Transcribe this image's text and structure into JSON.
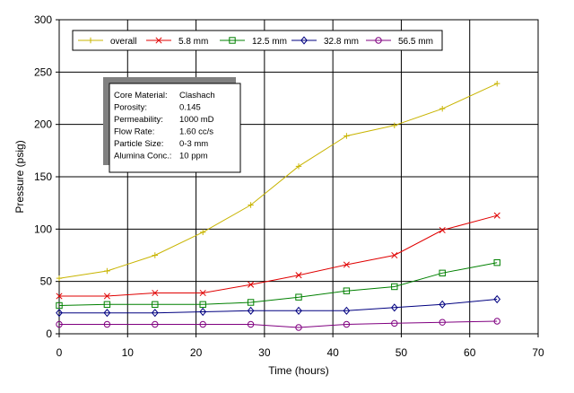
{
  "chart_data": {
    "type": "line",
    "title": "",
    "xlabel": "Time (hours)",
    "ylabel": "Pressure (psig)",
    "xlim": [
      0,
      70
    ],
    "ylim": [
      0,
      300
    ],
    "xticks": [
      0,
      10,
      20,
      30,
      40,
      50,
      60,
      70
    ],
    "yticks": [
      0,
      50,
      100,
      150,
      200,
      250,
      300
    ],
    "grid": true,
    "legend_position": "top",
    "series": [
      {
        "name": "overall",
        "color": "#c8b400",
        "marker": "plus",
        "x": [
          0,
          7,
          14,
          21,
          28,
          35,
          42,
          49,
          56,
          64
        ],
        "y": [
          53,
          60,
          75,
          97,
          123,
          160,
          189,
          199,
          215,
          239
        ]
      },
      {
        "name": "5.8 mm",
        "color": "#e00000",
        "marker": "x",
        "x": [
          0,
          7,
          14,
          21,
          28,
          35,
          42,
          49,
          56,
          64
        ],
        "y": [
          36,
          36,
          39,
          39,
          47,
          56,
          66,
          75,
          99,
          113
        ]
      },
      {
        "name": "12.5 mm",
        "color": "#008000",
        "marker": "square",
        "x": [
          0,
          7,
          14,
          21,
          28,
          35,
          42,
          49,
          56,
          64
        ],
        "y": [
          27,
          28,
          28,
          28,
          30,
          35,
          41,
          45,
          58,
          68
        ]
      },
      {
        "name": "32.8 mm",
        "color": "#000080",
        "marker": "diamond",
        "x": [
          0,
          7,
          14,
          21,
          28,
          35,
          42,
          49,
          56,
          64
        ],
        "y": [
          20,
          20,
          20,
          21,
          22,
          22,
          22,
          25,
          28,
          33
        ]
      },
      {
        "name": "56.5 mm",
        "color": "#800080",
        "marker": "circle",
        "x": [
          0,
          7,
          14,
          21,
          28,
          35,
          42,
          49,
          56,
          64
        ],
        "y": [
          9,
          9,
          9,
          9,
          9,
          6,
          9,
          10,
          11,
          12
        ]
      }
    ],
    "info_box": [
      {
        "label": "Core Material:",
        "value": "Clashach"
      },
      {
        "label": "Porosity:",
        "value": "0.145"
      },
      {
        "label": "Permeability:",
        "value": "1000 mD"
      },
      {
        "label": "Flow Rate:",
        "value": "1.60 cc/s"
      },
      {
        "label": "Particle Size:",
        "value": "0-3 mm"
      },
      {
        "label": "Alumina Conc.:",
        "value": "10 ppm"
      }
    ]
  }
}
